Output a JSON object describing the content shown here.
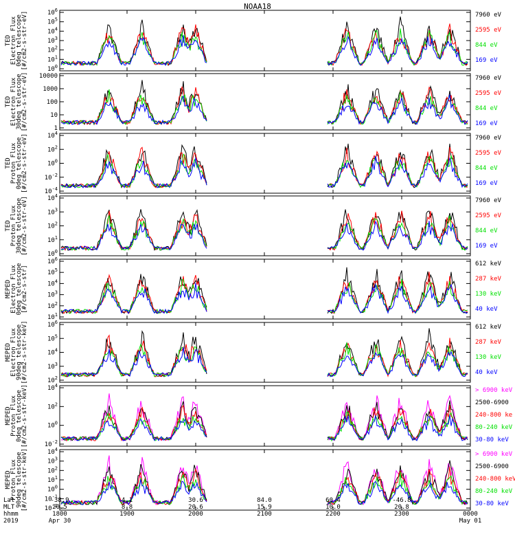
{
  "title": "NOAA18",
  "colors": {
    "black": "#000000",
    "red": "#ff0000",
    "green": "#00e000",
    "blue": "#0000ff",
    "magenta": "#ff00ff"
  },
  "footer": {
    "row_labels": [
      "Lat",
      "MLT",
      "hhmm",
      "2019"
    ],
    "columns": [
      {
        "lat": "-38.9",
        "mlt": "20.5",
        "hhmm": "1800",
        "date": "Apr 30"
      },
      {
        "lat": "4.1",
        "mlt": "8.8",
        "hhmm": "1900",
        "date": ""
      },
      {
        "lat": "30.6",
        "mlt": "20.6",
        "hhmm": "2000",
        "date": ""
      },
      {
        "lat": "84.0",
        "mlt": "15.9",
        "hhmm": "2100",
        "date": ""
      },
      {
        "lat": "60.4",
        "mlt": "10.0",
        "hhmm": "2200",
        "date": ""
      },
      {
        "lat": "-46.8",
        "mlt": "20.8",
        "hhmm": "2300",
        "date": ""
      },
      {
        "lat": "",
        "mlt": "",
        "hhmm": "0000",
        "date": "May 01"
      }
    ]
  },
  "chart_data": [
    {
      "type": "line",
      "ylabel": [
        "TED",
        "Electron Flux",
        "0deg telescope",
        "[#/cm2-s-str-eV]"
      ],
      "yticks": [
        "10^6",
        "10^5",
        "10^4",
        "10^3",
        "10^2",
        "10^1",
        "10^0"
      ],
      "legend": [
        {
          "label": "7960 eV",
          "color": "#000000"
        },
        {
          "label": "2595 eV",
          "color": "#ff0000"
        },
        {
          "label": "844 eV",
          "color": "#00e000"
        },
        {
          "label": "169 eV",
          "color": "#0000ff"
        }
      ]
    },
    {
      "type": "line",
      "ylabel": [
        "TED",
        "Electron Flux",
        "30deg telescope",
        "[#/cm2-s-str-eV]"
      ],
      "yticks": [
        "10000",
        "1000",
        "100",
        "10",
        "1"
      ],
      "legend": [
        {
          "label": "7960 eV",
          "color": "#000000"
        },
        {
          "label": "2595 eV",
          "color": "#ff0000"
        },
        {
          "label": "844 eV",
          "color": "#00e000"
        },
        {
          "label": "169 eV",
          "color": "#0000ff"
        }
      ]
    },
    {
      "type": "line",
      "ylabel": [
        "TED",
        "Proton Flux",
        "0deg telescope",
        "[#/cm2-s-str-eV]"
      ],
      "yticks": [
        "10^4",
        "10^2",
        "10^0",
        "10^-2",
        "10^-4"
      ],
      "legend": [
        {
          "label": "7960 eV",
          "color": "#000000"
        },
        {
          "label": "2595 eV",
          "color": "#ff0000"
        },
        {
          "label": "844 eV",
          "color": "#00e000"
        },
        {
          "label": "169 eV",
          "color": "#0000ff"
        }
      ]
    },
    {
      "type": "line",
      "ylabel": [
        "TED",
        "Proton Flux",
        "30deg telescope",
        "[#/cm2-s-str-eV]"
      ],
      "yticks": [
        "10^4",
        "10^3",
        "10^2",
        "10^1",
        "10^0"
      ],
      "legend": [
        {
          "label": "7960 eV",
          "color": "#000000"
        },
        {
          "label": "2595 eV",
          "color": "#ff0000"
        },
        {
          "label": "844 eV",
          "color": "#00e000"
        },
        {
          "label": "169 eV",
          "color": "#0000ff"
        }
      ]
    },
    {
      "type": "line",
      "ylabel": [
        "MEPED",
        "Electron Flux",
        "0deg telescope",
        "[#/cm2-s-str]"
      ],
      "yticks": [
        "10^6",
        "10^5",
        "10^4",
        "10^3",
        "10^2",
        "10^1"
      ],
      "legend": [
        {
          "label": "612 keV",
          "color": "#000000"
        },
        {
          "label": "287 keV",
          "color": "#ff0000"
        },
        {
          "label": "130 keV",
          "color": "#00e000"
        },
        {
          "label": "40 keV",
          "color": "#0000ff"
        }
      ]
    },
    {
      "type": "line",
      "ylabel": [
        "MEPED",
        "Electron Flux",
        "90deg telescope",
        "[#/cm2-s-str-keV]"
      ],
      "yticks": [
        "10^6",
        "10^5",
        "10^4",
        "10^3",
        "10^2"
      ],
      "legend": [
        {
          "label": "612 keV",
          "color": "#000000"
        },
        {
          "label": "287 keV",
          "color": "#ff0000"
        },
        {
          "label": "130 keV",
          "color": "#00e000"
        },
        {
          "label": "40 keV",
          "color": "#0000ff"
        }
      ]
    },
    {
      "type": "line",
      "ylabel": [
        "MEPED",
        "Proton Flux",
        "0deg telescope",
        "[#/cm2-s-str-keV]"
      ],
      "yticks": [
        "10^4",
        "10^2",
        "10^0",
        "10^-2"
      ],
      "legend": [
        {
          "label": "> 6900 keV",
          "color": "#ff00ff"
        },
        {
          "label": "2500-6900",
          "color": "#000000"
        },
        {
          "label": "240-800 ke",
          "color": "#ff0000"
        },
        {
          "label": "80-240 keV",
          "color": "#00e000"
        },
        {
          "label": "30-80 keV",
          "color": "#0000ff"
        }
      ]
    },
    {
      "type": "line",
      "ylabel": [
        "MEPED",
        "Proton Flux",
        "90deg telescope",
        "[#/cm2-s-str-keV]"
      ],
      "yticks": [
        "10^4",
        "10^3",
        "10^2",
        "10^1",
        "10^0",
        "10^-1",
        "10^-2"
      ],
      "legend": [
        {
          "label": "> 6900 keV",
          "color": "#ff00ff"
        },
        {
          "label": "2500-6900",
          "color": "#000000"
        },
        {
          "label": "240-800 keV",
          "color": "#ff0000"
        },
        {
          "label": "80-240 keV",
          "color": "#00e000"
        },
        {
          "label": "30-80 keV",
          "color": "#0000ff"
        }
      ]
    }
  ]
}
